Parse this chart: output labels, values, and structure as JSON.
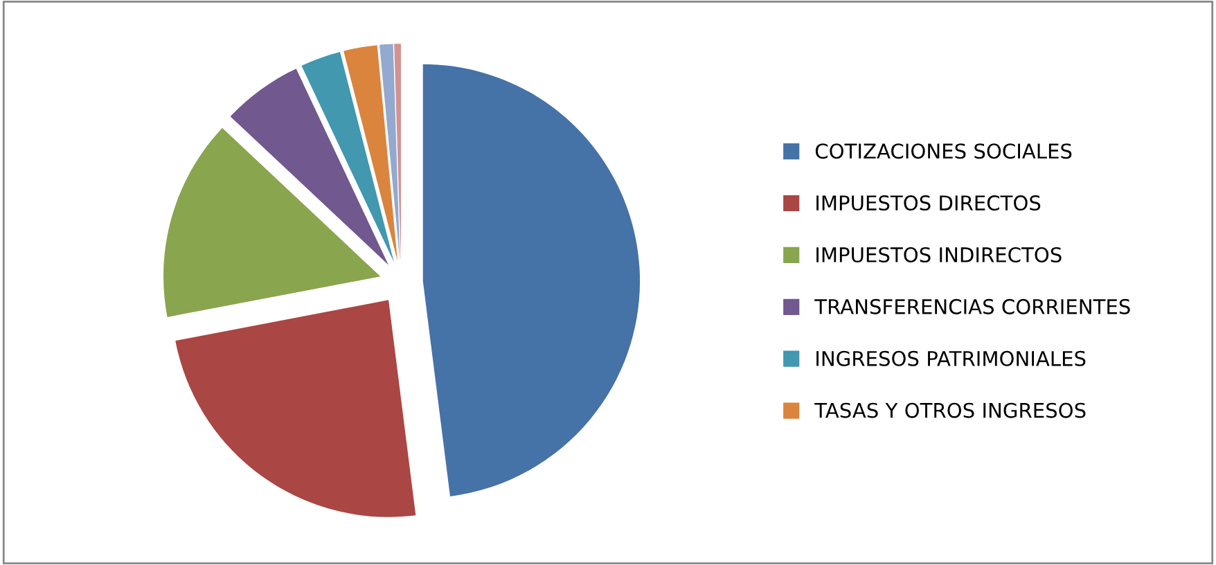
{
  "chart_data": {
    "type": "pie",
    "categories": [
      "COTIZACIONES SOCIALES",
      "IMPUESTOS DIRECTOS",
      "IMPUESTOS INDIRECTOS",
      "TRANSFERENCIAS CORRIENTES",
      "INGRESOS PATRIMONIALES",
      "TASAS Y OTROS INGRESOS",
      null,
      null
    ],
    "values": [
      48,
      24,
      15,
      6,
      3,
      2.5,
      1,
      0.5
    ],
    "colors": [
      "#4572a7",
      "#aa4643",
      "#89a54e",
      "#71588f",
      "#4198af",
      "#db843d",
      "#93a9cf",
      "#d19392"
    ],
    "legend": "right"
  }
}
